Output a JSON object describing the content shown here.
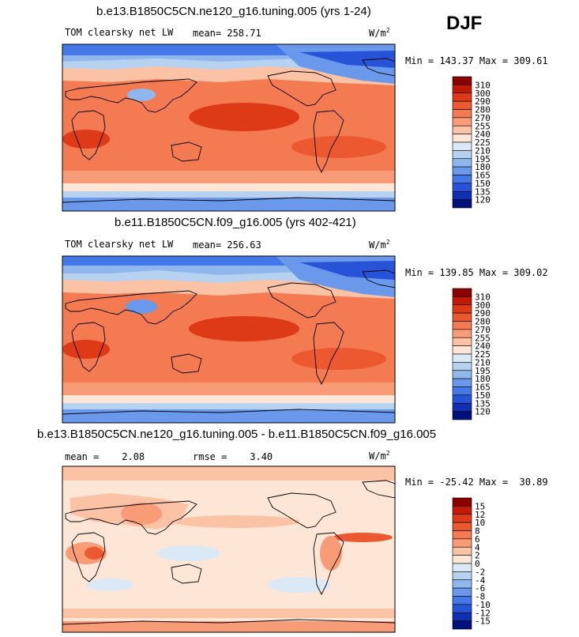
{
  "season": "DJF",
  "chart_data": [
    {
      "type": "heatmap",
      "title": "b.e13.B1850C5CN.ne120_g16.tuning.005 (yrs 1-24)",
      "variable": "TOM clearsky net LW",
      "mean_text": "mean= 258.71",
      "units": "W/m",
      "units_sup": "2",
      "minmax_text": "Min = 143.37 Max = 309.61",
      "min": 143.37,
      "max": 309.61,
      "mean": 258.71,
      "colorbar": {
        "levels": [
          "310",
          "300",
          "290",
          "280",
          "270",
          "255",
          "240",
          "225",
          "210",
          "195",
          "180",
          "165",
          "150",
          "135",
          "120"
        ],
        "colors": [
          "#8b0000",
          "#c21a06",
          "#de3a18",
          "#ec5930",
          "#f47a51",
          "#f89b77",
          "#fbc2a6",
          "#fde6d6",
          "#dbe9f6",
          "#b6d2f0",
          "#8fb6ed",
          "#6a99ec",
          "#4477e8",
          "#2753d8",
          "#0f2fb4",
          "#00107c"
        ]
      }
    },
    {
      "type": "heatmap",
      "title": "b.e11.B1850C5CN.f09_g16.005 (yrs 402-421)",
      "variable": "TOM clearsky net LW",
      "mean_text": "mean= 256.63",
      "units": "W/m",
      "units_sup": "2",
      "minmax_text": "Min = 139.85 Max = 309.02",
      "min": 139.85,
      "max": 309.02,
      "mean": 256.63,
      "colorbar": {
        "levels": [
          "310",
          "300",
          "290",
          "280",
          "270",
          "255",
          "240",
          "225",
          "210",
          "195",
          "180",
          "165",
          "150",
          "135",
          "120"
        ],
        "colors": [
          "#8b0000",
          "#c21a06",
          "#de3a18",
          "#ec5930",
          "#f47a51",
          "#f89b77",
          "#fbc2a6",
          "#fde6d6",
          "#dbe9f6",
          "#b6d2f0",
          "#8fb6ed",
          "#6a99ec",
          "#4477e8",
          "#2753d8",
          "#0f2fb4",
          "#00107c"
        ]
      }
    },
    {
      "type": "heatmap",
      "title": "b.e13.B1850C5CN.ne120_g16.tuning.005 - b.e11.B1850C5CN.f09_g16.005",
      "variable": "",
      "mean_text": "mean =    2.08",
      "rmse_text": "rmse =    3.40",
      "units": "W/m",
      "units_sup": "2",
      "minmax_text": "Min = -25.42 Max =  30.89",
      "min": -25.42,
      "max": 30.89,
      "mean": 2.08,
      "rmse": 3.4,
      "colorbar": {
        "levels": [
          "15",
          "12",
          "10",
          "8",
          "6",
          "4",
          "2",
          "0",
          "-2",
          "-4",
          "-6",
          "-8",
          "-10",
          "-12",
          "-15"
        ],
        "colors": [
          "#8b0000",
          "#c21a06",
          "#de3a18",
          "#ec5930",
          "#f47a51",
          "#f89b77",
          "#fbc2a6",
          "#fde6d6",
          "#dbe9f6",
          "#b6d2f0",
          "#8fb6ed",
          "#6a99ec",
          "#4477e8",
          "#2753d8",
          "#0f2fb4",
          "#00107c"
        ]
      }
    }
  ]
}
